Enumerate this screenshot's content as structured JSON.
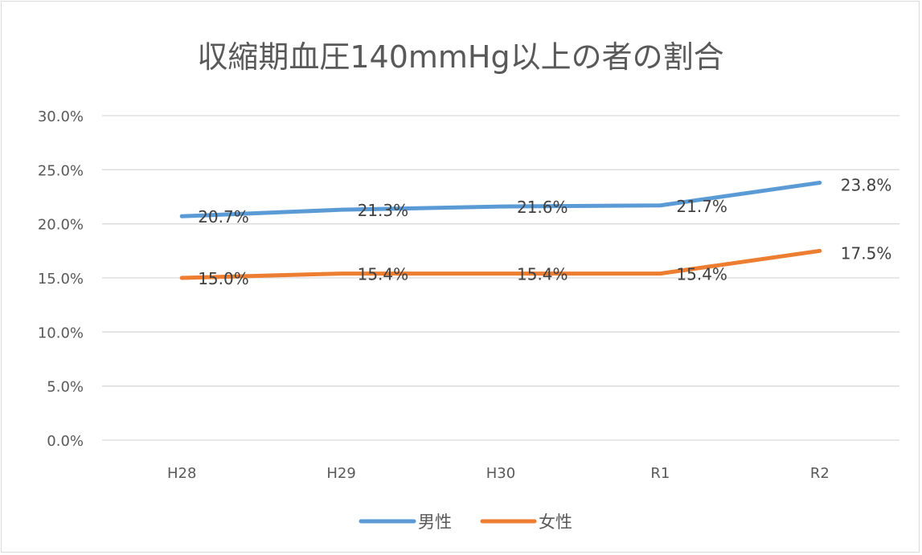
{
  "chart_data": {
    "type": "line",
    "title": "収縮期血圧140mmHg以上の者の割合",
    "categories": [
      "H28",
      "H29",
      "H30",
      "R1",
      "R2"
    ],
    "series": [
      {
        "name": "男性",
        "values": [
          20.7,
          21.3,
          21.6,
          21.7,
          23.8
        ],
        "labels": [
          "20.7%",
          "21.3%",
          "21.6%",
          "21.7%",
          "23.8%"
        ],
        "color": "#5b9bd5"
      },
      {
        "name": "女性",
        "values": [
          15.0,
          15.4,
          15.4,
          15.4,
          17.5
        ],
        "labels": [
          "15.0%",
          "15.4%",
          "15.4%",
          "15.4%",
          "17.5%"
        ],
        "color": "#ed7d31"
      }
    ],
    "yticks": [
      "0.0%",
      "5.0%",
      "10.0%",
      "15.0%",
      "20.0%",
      "25.0%",
      "30.0%"
    ],
    "ylim": [
      0,
      30
    ],
    "ystep": 5,
    "grid": true,
    "legend": "bottom"
  }
}
